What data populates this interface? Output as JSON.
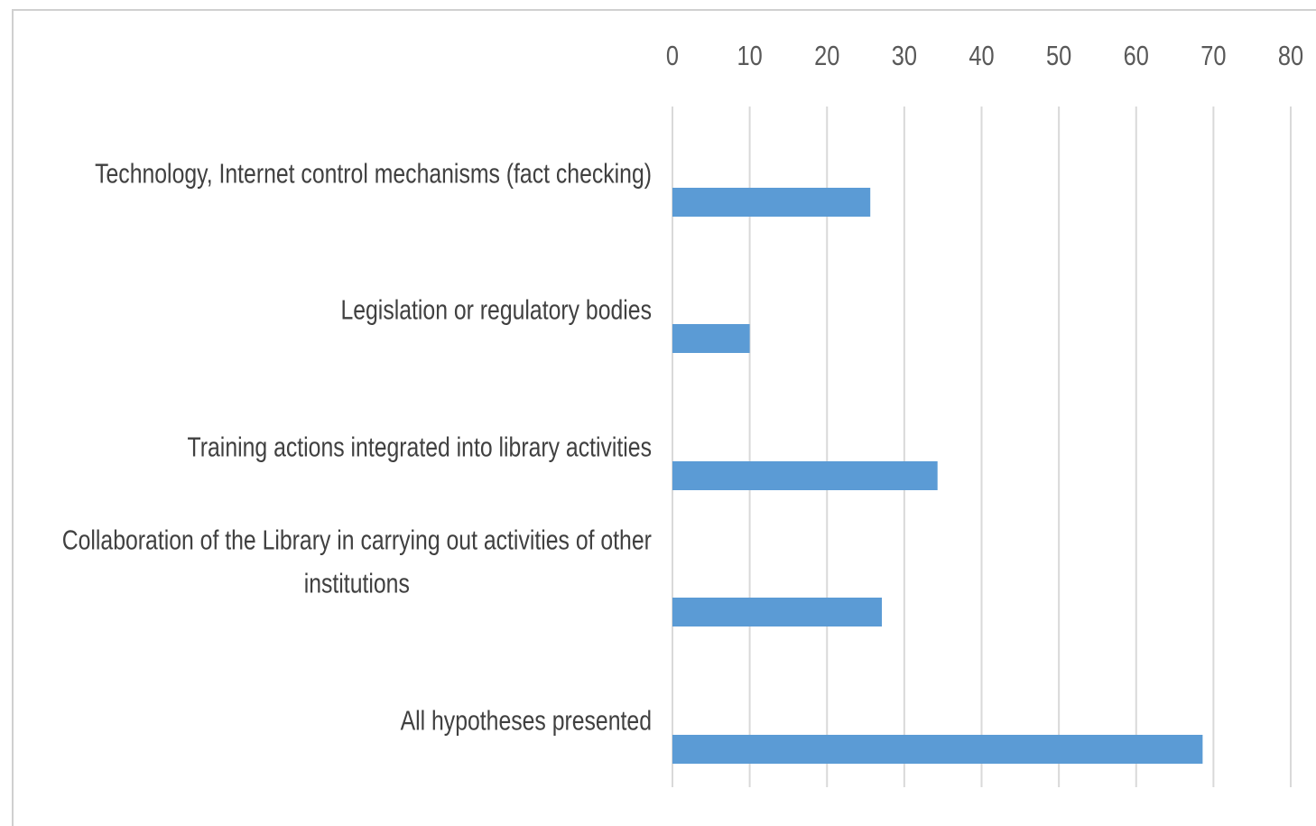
{
  "chart_data": {
    "type": "bar",
    "orientation": "horizontal",
    "categories": [
      [
        "Technology, Internet control mechanisms (fact checking)"
      ],
      [
        "Legislation or regulatory bodies"
      ],
      [
        "Training actions integrated into library activities"
      ],
      [
        "Collaboration of the Library in carrying out activities of other",
        "institutions"
      ],
      [
        "All hypotheses presented"
      ]
    ],
    "values": [
      25.6,
      10,
      34.3,
      27.1,
      68.6
    ],
    "xlim": [
      0,
      80
    ],
    "xticks": [
      "0",
      "10",
      "20",
      "30",
      "40",
      "50",
      "60",
      "70",
      "80"
    ],
    "xaxis_position": "top",
    "grid": "vertical",
    "bar_color": "#5b9bd5",
    "grid_color": "#d9d9d9",
    "title": "",
    "xlabel": "",
    "ylabel": ""
  }
}
